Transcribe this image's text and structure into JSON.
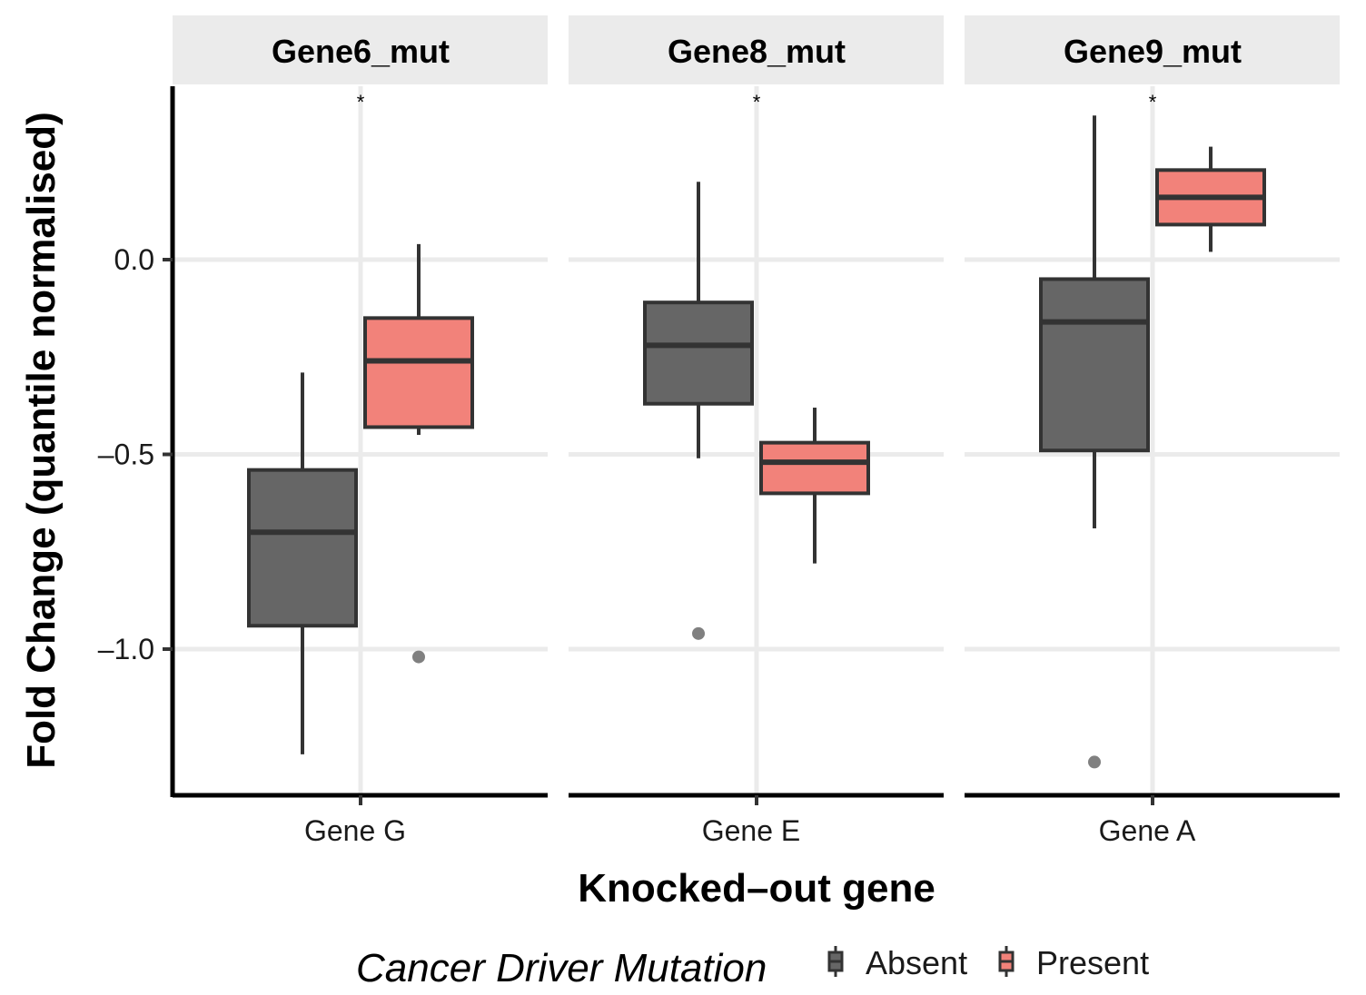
{
  "chart_data": {
    "type": "boxplot",
    "xlabel": "Knocked–out gene",
    "ylabel": "Fold Change (quantile normalised)",
    "ylim": [
      -1.35,
      0.45
    ],
    "yticks": [
      0.0,
      -0.5,
      -1.0
    ],
    "ytick_labels": [
      "0.0",
      "–0.5",
      "–1.0"
    ],
    "grid": true,
    "legend": {
      "title": "Cancer Driver Mutation",
      "position": "bottom",
      "entries": [
        {
          "label": "Absent",
          "color": "#666666"
        },
        {
          "label": "Present",
          "color": "#f2827a"
        }
      ]
    },
    "panels": [
      {
        "strip": "Gene6_mut",
        "category": "Gene G",
        "annotation": "*",
        "boxes": [
          {
            "group": "Absent",
            "whisker_low": -1.27,
            "q1": -0.94,
            "median": -0.7,
            "q3": -0.54,
            "whisker_high": -0.29,
            "outliers": []
          },
          {
            "group": "Present",
            "whisker_low": -0.45,
            "q1": -0.43,
            "median": -0.26,
            "q3": -0.15,
            "whisker_high": 0.04,
            "outliers": [
              -1.02
            ]
          }
        ]
      },
      {
        "strip": "Gene8_mut",
        "category": "Gene E",
        "annotation": "*",
        "boxes": [
          {
            "group": "Absent",
            "whisker_low": -0.51,
            "q1": -0.37,
            "median": -0.22,
            "q3": -0.11,
            "whisker_high": 0.2,
            "outliers": [
              -0.96
            ]
          },
          {
            "group": "Present",
            "whisker_low": -0.78,
            "q1": -0.6,
            "median": -0.52,
            "q3": -0.47,
            "whisker_high": -0.38,
            "outliers": []
          }
        ]
      },
      {
        "strip": "Gene9_mut",
        "category": "Gene A",
        "annotation": "*",
        "boxes": [
          {
            "group": "Absent",
            "whisker_low": -0.69,
            "q1": -0.49,
            "median": -0.16,
            "q3": -0.05,
            "whisker_high": 0.37,
            "outliers": [
              -1.29
            ]
          },
          {
            "group": "Present",
            "whisker_low": 0.02,
            "q1": 0.09,
            "median": 0.16,
            "q3": 0.23,
            "whisker_high": 0.29,
            "outliers": []
          }
        ]
      }
    ]
  }
}
